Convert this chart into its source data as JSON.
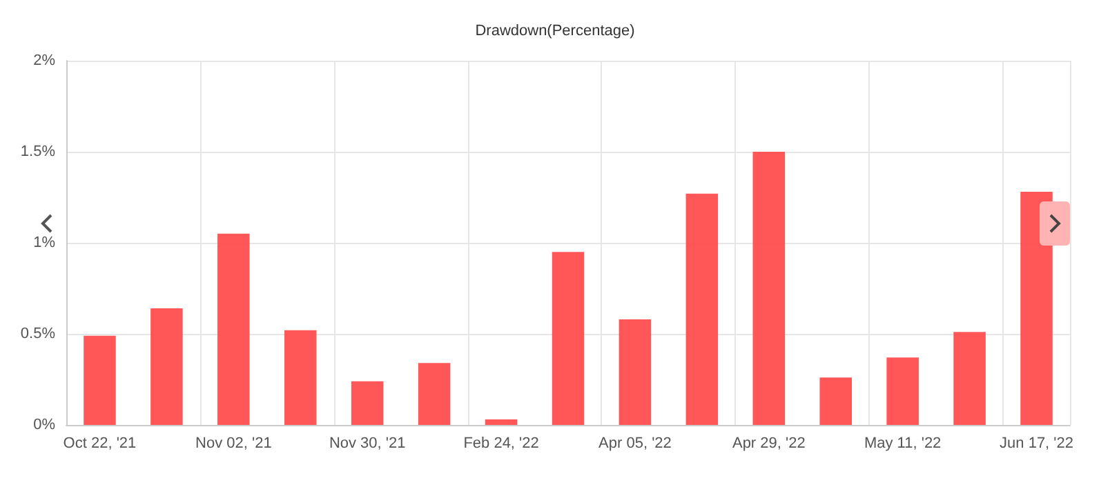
{
  "chart_data": {
    "type": "bar",
    "title": "Drawdown(Percentage)",
    "categories": [
      "Oct 22, '21",
      null,
      "Nov 02, '21",
      null,
      "Nov 30, '21",
      null,
      "Feb 24, '22",
      null,
      "Apr 05, '22",
      null,
      "Apr 29, '22",
      null,
      "May 11, '22",
      null,
      "Jun 17, '22"
    ],
    "values": [
      0.49,
      0.64,
      1.05,
      0.52,
      0.24,
      0.34,
      0.03,
      0.95,
      0.58,
      1.27,
      1.5,
      0.26,
      0.37,
      0.51,
      1.28
    ],
    "color": "#ff4d4f",
    "ylim": [
      0,
      2
    ],
    "yticks": [
      {
        "value": 0,
        "label": "0%"
      },
      {
        "value": 0.5,
        "label": "0.5%"
      },
      {
        "value": 1,
        "label": "1%"
      },
      {
        "value": 1.5,
        "label": "1.5%"
      },
      {
        "value": 2,
        "label": "2%"
      }
    ],
    "grid": true
  }
}
